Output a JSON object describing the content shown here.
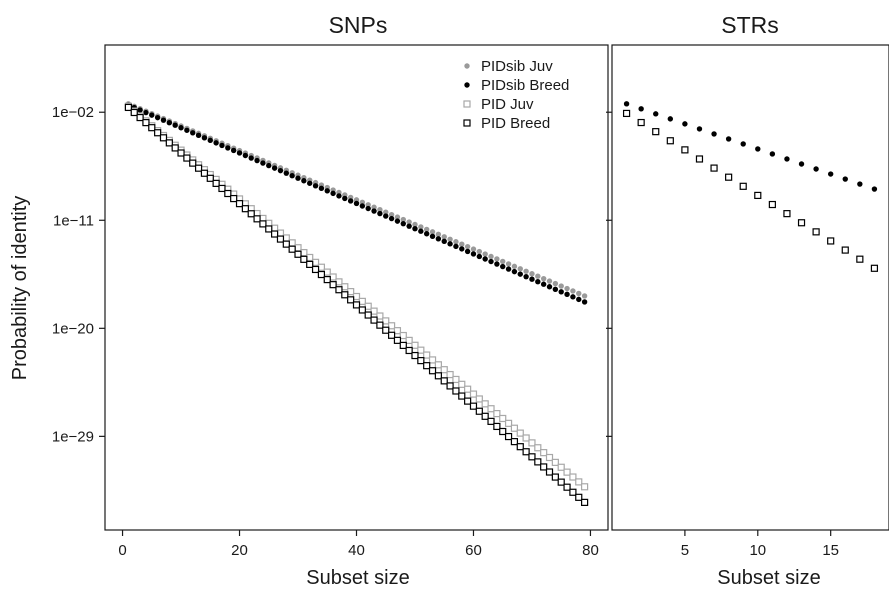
{
  "chart_data": [
    {
      "type": "scatter",
      "title": "SNPs",
      "xlabel": "Subset size",
      "ylabel": "Probability of identity",
      "y_scale": "log10",
      "xlim": [
        -3,
        83
      ],
      "ylim_log10": [
        -36.8,
        3.6
      ],
      "x_ticks": [
        0,
        20,
        40,
        60,
        80
      ],
      "x_tick_labels": [
        "0",
        "20",
        "40",
        "60",
        "80"
      ],
      "y_ticks_log10": [
        -2,
        -11,
        -20,
        -29
      ],
      "y_tick_labels": [
        "1e−02",
        "1e−11",
        "1e−20",
        "1e−29"
      ],
      "grid": false,
      "legend_position": "top-right",
      "series": [
        {
          "name": "PIDsib Juv",
          "marker": "filled-circle",
          "color": "#9a9a9a",
          "x_start": 1,
          "x_end": 79,
          "log10_start": -1.3,
          "log10_end": -17.3
        },
        {
          "name": "PIDsib Breed",
          "marker": "filled-circle",
          "color": "#000000",
          "x_start": 1,
          "x_end": 79,
          "log10_start": -1.4,
          "log10_end": -17.8
        },
        {
          "name": "PID Juv",
          "marker": "open-square",
          "color": "#a8a8a8",
          "x_start": 1,
          "x_end": 79,
          "log10_start": -1.5,
          "log10_end": -33.2
        },
        {
          "name": "PID Breed",
          "marker": "open-square",
          "color": "#000000",
          "x_start": 1,
          "x_end": 79,
          "log10_start": -1.6,
          "log10_end": -34.5
        }
      ]
    },
    {
      "type": "scatter",
      "title": "STRs",
      "xlabel": "Subset size",
      "ylabel": "",
      "y_scale": "log10",
      "xlim": [
        0,
        19
      ],
      "ylim_log10": [
        -36.8,
        3.6
      ],
      "x_ticks": [
        5,
        10,
        15
      ],
      "x_tick_labels": [
        "5",
        "10",
        "15"
      ],
      "grid": false,
      "series": [
        {
          "marker": "filled-circle",
          "color": "#000000",
          "x_start": 1,
          "x_end": 18,
          "log10_start": -1.3,
          "log10_end": -8.4
        },
        {
          "marker": "open-square",
          "color": "#000000",
          "x_start": 1,
          "x_end": 18,
          "log10_start": -2.1,
          "log10_end": -15.0
        }
      ]
    }
  ]
}
